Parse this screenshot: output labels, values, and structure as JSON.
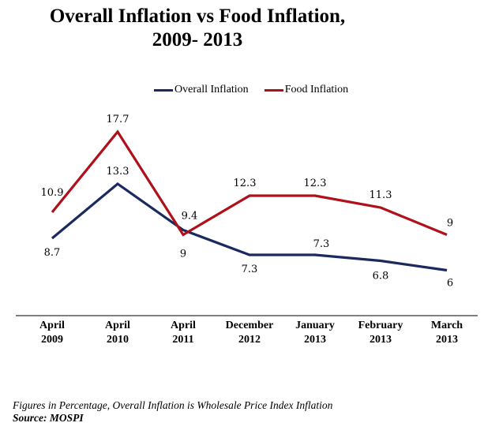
{
  "title_line1": "Overall Inflation vs Food Inflation,",
  "title_line2": "2009- 2013",
  "colors": {
    "overall": "#1b2a5e",
    "food": "#b0101a"
  },
  "footnote": "Figures in Percentage, Overall Inflation is Wholesale Price Index Inflation",
  "source": "Source: MOSPI",
  "chart_data": {
    "type": "line",
    "categories": [
      [
        "April",
        "2009"
      ],
      [
        "April",
        "2010"
      ],
      [
        "April",
        "2011"
      ],
      [
        "December",
        "2012"
      ],
      [
        "January",
        "2013"
      ],
      [
        "February",
        "2013"
      ],
      [
        "March",
        "2013"
      ]
    ],
    "series": [
      {
        "name": "Overall Inflation",
        "values": [
          8.7,
          13.3,
          9.4,
          7.3,
          7.3,
          6.8,
          6
        ],
        "labels": [
          "8.7",
          "13.3",
          "9.4",
          "7.3",
          "7.3",
          "6.8",
          "6"
        ]
      },
      {
        "name": "Food Inflation",
        "values": [
          10.9,
          17.7,
          9,
          12.3,
          12.3,
          11.3,
          9
        ],
        "labels": [
          "10.9",
          "17.7",
          "9",
          "12.3",
          "12.3",
          "11.3",
          "9"
        ]
      }
    ],
    "legend": "top"
  }
}
